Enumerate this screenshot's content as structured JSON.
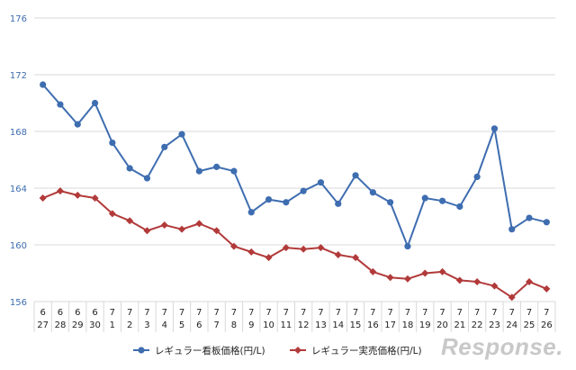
{
  "chart_data": {
    "type": "line",
    "title": "",
    "xlabel": "",
    "ylabel": "",
    "ylim": [
      156,
      176
    ],
    "yticks": [
      156,
      160,
      164,
      168,
      172,
      176
    ],
    "grid": true,
    "legend_position": "bottom",
    "categories": [
      {
        "month": "6",
        "day": "27"
      },
      {
        "month": "6",
        "day": "28"
      },
      {
        "month": "6",
        "day": "29"
      },
      {
        "month": "6",
        "day": "30"
      },
      {
        "month": "7",
        "day": "1"
      },
      {
        "month": "7",
        "day": "2"
      },
      {
        "month": "7",
        "day": "3"
      },
      {
        "month": "7",
        "day": "4"
      },
      {
        "month": "7",
        "day": "5"
      },
      {
        "month": "7",
        "day": "6"
      },
      {
        "month": "7",
        "day": "7"
      },
      {
        "month": "7",
        "day": "8"
      },
      {
        "month": "7",
        "day": "9"
      },
      {
        "month": "7",
        "day": "10"
      },
      {
        "month": "7",
        "day": "11"
      },
      {
        "month": "7",
        "day": "12"
      },
      {
        "month": "7",
        "day": "13"
      },
      {
        "month": "7",
        "day": "14"
      },
      {
        "month": "7",
        "day": "15"
      },
      {
        "month": "7",
        "day": "16"
      },
      {
        "month": "7",
        "day": "17"
      },
      {
        "month": "7",
        "day": "18"
      },
      {
        "month": "7",
        "day": "19"
      },
      {
        "month": "7",
        "day": "20"
      },
      {
        "month": "7",
        "day": "21"
      },
      {
        "month": "7",
        "day": "22"
      },
      {
        "month": "7",
        "day": "23"
      },
      {
        "month": "7",
        "day": "24"
      },
      {
        "month": "7",
        "day": "25"
      },
      {
        "month": "7",
        "day": "26"
      }
    ],
    "series": [
      {
        "name": "レギュラー看板価格(円/L)",
        "color": "#3e6db0",
        "marker": "circle",
        "values": [
          171.3,
          169.9,
          168.5,
          170.0,
          167.2,
          165.4,
          164.7,
          166.9,
          167.8,
          165.2,
          165.5,
          165.2,
          162.3,
          163.2,
          163.0,
          163.8,
          164.4,
          162.9,
          164.9,
          163.7,
          163.0,
          159.9,
          163.3,
          163.1,
          162.7,
          164.8,
          168.2,
          161.1,
          161.9,
          161.6
        ]
      },
      {
        "name": "レギュラー実売価格(円/L)",
        "color": "#b23a3a",
        "marker": "diamond",
        "values": [
          163.3,
          163.8,
          163.5,
          163.3,
          162.2,
          161.7,
          161.0,
          161.4,
          161.1,
          161.5,
          161.0,
          159.9,
          159.5,
          159.1,
          159.8,
          159.7,
          159.8,
          159.3,
          159.1,
          158.1,
          157.7,
          157.6,
          158.0,
          158.1,
          157.5,
          157.4,
          157.1,
          156.3,
          157.4,
          156.9
        ]
      }
    ]
  },
  "colors": {
    "grid": "#d9d9d9",
    "axis_text": "#3e6db0",
    "tick_text": "#222222"
  },
  "watermark": {
    "text": "Response."
  }
}
